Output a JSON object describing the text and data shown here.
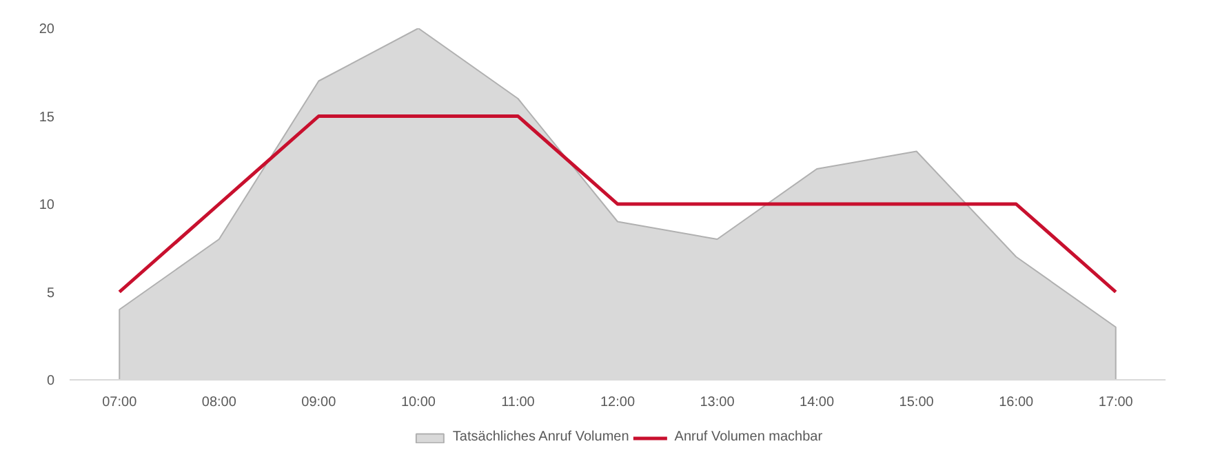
{
  "chart_data": {
    "type": "area",
    "categories": [
      "07:00",
      "08:00",
      "09:00",
      "10:00",
      "11:00",
      "12:00",
      "13:00",
      "14:00",
      "15:00",
      "16:00",
      "17:00"
    ],
    "series": [
      {
        "name": "Tatsächliches Anruf Volumen",
        "type": "area",
        "color": "#d9d9d9",
        "values": [
          4,
          8,
          17,
          20,
          16,
          9,
          8,
          12,
          13,
          7,
          3
        ]
      },
      {
        "name": "Anruf Volumen machbar",
        "type": "line",
        "color": "#c8102e",
        "values": [
          5,
          10,
          15,
          15,
          15,
          10,
          10,
          10,
          10,
          10,
          5
        ]
      }
    ],
    "ylim": [
      0,
      20
    ],
    "yticks": [
      0,
      5,
      10,
      15,
      20
    ],
    "grid": false,
    "legend": "bottom"
  }
}
